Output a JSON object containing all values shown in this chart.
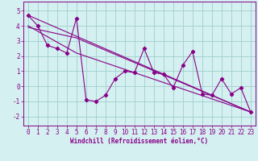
{
  "xlabel": "Windchill (Refroidissement éolien,°C)",
  "background_color": "#d4f0f0",
  "grid_color": "#a0cece",
  "line_color": "#880088",
  "xlim": [
    -0.5,
    23.5
  ],
  "ylim": [
    -2.6,
    5.6
  ],
  "yticks": [
    -2,
    -1,
    0,
    1,
    2,
    3,
    4,
    5
  ],
  "xticks": [
    0,
    1,
    2,
    3,
    4,
    5,
    6,
    7,
    8,
    9,
    10,
    11,
    12,
    13,
    14,
    15,
    16,
    17,
    18,
    19,
    20,
    21,
    22,
    23
  ],
  "series1_x": [
    0,
    1,
    2,
    3,
    4,
    5,
    6,
    7,
    8,
    9,
    10,
    11,
    12,
    13,
    14,
    15,
    16,
    17,
    18,
    19,
    20,
    21,
    22,
    23
  ],
  "series1_y": [
    4.7,
    4.0,
    2.7,
    2.5,
    2.2,
    4.5,
    -0.9,
    -1.0,
    -0.6,
    0.5,
    1.0,
    0.9,
    2.5,
    0.9,
    0.8,
    -0.1,
    1.4,
    2.3,
    -0.5,
    -0.6,
    0.5,
    -0.5,
    -0.1,
    -1.7
  ],
  "series2_x": [
    0,
    23
  ],
  "series2_y": [
    4.7,
    -1.7
  ],
  "series3_x": [
    0,
    5,
    23
  ],
  "series3_y": [
    3.9,
    3.2,
    -1.7
  ],
  "series4_x": [
    0,
    5,
    23
  ],
  "series4_y": [
    4.0,
    2.2,
    -1.7
  ],
  "xlabel_fontsize": 5.5,
  "tick_fontsize": 5.5
}
